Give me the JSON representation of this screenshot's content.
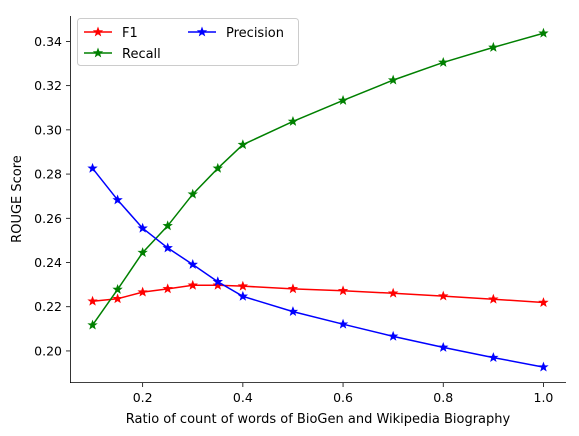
{
  "chart_data": {
    "type": "line",
    "xlabel": "Ratio of count of words of BioGen and Wikipedia Biography",
    "ylabel": "ROUGE Score",
    "xlim": [
      0.055,
      1.045
    ],
    "ylim": [
      0.1855,
      0.3515
    ],
    "xticks": [
      0.2,
      0.4,
      0.6,
      0.8,
      1.0
    ],
    "xtick_labels": [
      "0.2",
      "0.4",
      "0.6",
      "0.8",
      "1.0"
    ],
    "yticks": [
      0.2,
      0.22,
      0.24,
      0.26,
      0.28,
      0.3,
      0.32,
      0.34
    ],
    "ytick_labels": [
      "0.20",
      "0.22",
      "0.24",
      "0.26",
      "0.28",
      "0.30",
      "0.32",
      "0.34"
    ],
    "grid": false,
    "legend_position": "top-left",
    "marker": "star",
    "x": [
      0.1,
      0.15,
      0.2,
      0.25,
      0.3,
      0.35,
      0.4,
      0.5,
      0.6,
      0.7,
      0.8,
      0.9,
      1.0
    ],
    "series": [
      {
        "name": "F1",
        "color": "#ff0000",
        "values": [
          0.2225,
          0.2236,
          0.2266,
          0.2281,
          0.2297,
          0.2297,
          0.2293,
          0.2281,
          0.2272,
          0.2261,
          0.2248,
          0.2234,
          0.2219
        ]
      },
      {
        "name": "Recall",
        "color": "#008000",
        "values": [
          0.2117,
          0.2278,
          0.2445,
          0.2566,
          0.2709,
          0.2826,
          0.2933,
          0.3038,
          0.3133,
          0.3225,
          0.3305,
          0.3373,
          0.3437
        ]
      },
      {
        "name": "Precision",
        "color": "#0000ff",
        "values": [
          0.2826,
          0.2683,
          0.2555,
          0.2466,
          0.2391,
          0.2313,
          0.2247,
          0.2178,
          0.2121,
          0.2066,
          0.2016,
          0.197,
          0.1927
        ]
      }
    ]
  }
}
